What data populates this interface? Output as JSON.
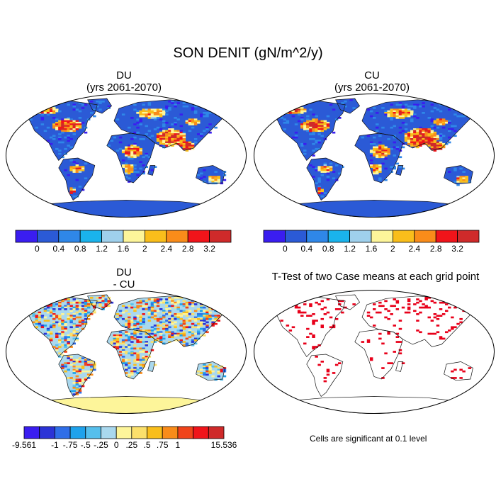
{
  "figure_title": "SON DENIT (gN/m^2/y)",
  "panels": [
    {
      "id": "du",
      "title_line1": "DU",
      "title_line2": "(yrs 2061-2070)"
    },
    {
      "id": "cu",
      "title_line1": "CU",
      "title_line2": "(yrs 2061-2070)"
    },
    {
      "id": "diff",
      "title_line1": "DU",
      "title_line2": "- CU"
    },
    {
      "id": "ttest",
      "title_line1": "T-Test of two Case means at each grid point",
      "title_line2": ""
    }
  ],
  "colorbar_main": {
    "colors": [
      "#3a1df0",
      "#2b5ad6",
      "#2f87e8",
      "#1ab3ec",
      "#9fd0ec",
      "#fdf59a",
      "#f9be1b",
      "#f98c1a",
      "#f0141a",
      "#cf2a2a"
    ],
    "labels": [
      "0",
      "0.4",
      "0.8",
      "1.2",
      "1.6",
      "2",
      "2.4",
      "2.8",
      "3.2"
    ]
  },
  "colorbar_diff": {
    "colors": [
      "#3a1df0",
      "#2b33d6",
      "#2f6ee8",
      "#1fa2ec",
      "#56bfec",
      "#a9d8ee",
      "#fdf59a",
      "#fbe06b",
      "#f9be1b",
      "#f98c1a",
      "#f0441a",
      "#f0141a",
      "#cf2a2a"
    ],
    "labels": [
      "-9.561",
      "-1",
      "-.75",
      "-.5",
      "-.25",
      "0",
      ".25",
      ".5",
      ".75",
      "1",
      "15.536"
    ]
  },
  "ttest_note": "Cells are significant at 0.1 level",
  "colors": {
    "land_base": "#2b5ad6",
    "diff_land_base": "#a9d8ee",
    "diff_antarctica": "#fdf59a",
    "significant": "#e8001a"
  }
}
